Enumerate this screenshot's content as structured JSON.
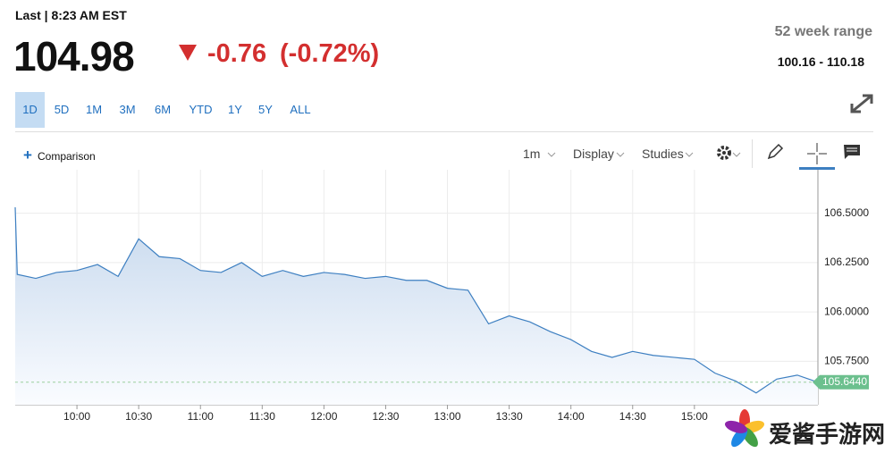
{
  "header": {
    "last": "Last | 8:23 AM EST",
    "price": "104.98",
    "change": "-0.76",
    "change_pct": "(-0.72%)",
    "range_title": "52 week range",
    "range": "100.16 - 110.18"
  },
  "ranges": [
    "1D",
    "5D",
    "1M",
    "3M",
    "6M",
    "YTD",
    "1Y",
    "5Y",
    "ALL"
  ],
  "toolbar": {
    "comparison": "Comparison",
    "interval": "1m",
    "display": "Display",
    "studies": "Studies"
  },
  "watermark": "爱酱手游网",
  "chart_data": {
    "type": "line",
    "color": "#3d7fc1",
    "x": [
      "09:30",
      "09:31",
      "09:40",
      "09:50",
      "10:00",
      "10:10",
      "10:20",
      "10:30",
      "10:40",
      "10:50",
      "11:00",
      "11:10",
      "11:20",
      "11:30",
      "11:40",
      "11:50",
      "12:00",
      "12:10",
      "12:20",
      "12:30",
      "12:40",
      "12:50",
      "13:00",
      "13:10",
      "13:20",
      "13:30",
      "13:40",
      "13:50",
      "14:00",
      "14:10",
      "14:20",
      "14:30",
      "14:40",
      "14:50",
      "15:00",
      "15:10",
      "15:20",
      "15:30",
      "15:40",
      "15:50",
      "16:00"
    ],
    "values": [
      106.53,
      106.19,
      106.17,
      106.2,
      106.21,
      106.24,
      106.18,
      106.37,
      106.28,
      106.27,
      106.21,
      106.2,
      106.25,
      106.18,
      106.21,
      106.18,
      106.2,
      106.19,
      106.17,
      106.18,
      106.16,
      106.16,
      106.12,
      106.11,
      105.94,
      105.98,
      105.95,
      105.9,
      105.86,
      105.8,
      105.77,
      105.8,
      105.78,
      105.77,
      105.76,
      105.69,
      105.65,
      105.59,
      105.66,
      105.68,
      105.644
    ],
    "xlim": [
      "09:30",
      "16:00"
    ],
    "xticks": [
      "10:00",
      "10:30",
      "11:00",
      "11:30",
      "12:00",
      "12:30",
      "13:00",
      "13:30",
      "14:00",
      "14:30",
      "15:00"
    ],
    "ylim": [
      105.53,
      106.72
    ],
    "yticks": [
      {
        "value": 105.75,
        "label": "105.7500"
      },
      {
        "value": 106,
        "label": "106.0000"
      },
      {
        "value": 106.25,
        "label": "106.2500"
      },
      {
        "value": 106.5,
        "label": "106.5000"
      }
    ],
    "last": {
      "value": 105.644,
      "label": "105.6440"
    },
    "grid": true
  }
}
